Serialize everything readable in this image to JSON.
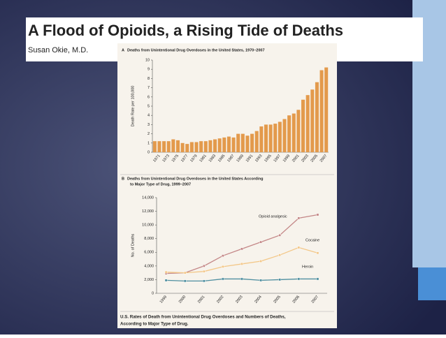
{
  "header": {
    "title": "A Flood of Opioids, a Rising Tide of Deaths",
    "author": "Susan Okie, M.D."
  },
  "caption": [
    "U.S. Rates of Death from Unintentional Drug Overdoses and Numbers of Deaths,",
    "According to Major Type of Drug."
  ],
  "chart_data": [
    {
      "type": "bar",
      "label": "A",
      "title": [
        "Deaths from Unintentional Drug Overdoses in the United States, 1970–2007"
      ],
      "y_label": "Death Rate per 100,000",
      "color": "#e39a4c",
      "categories": [
        null,
        "1971",
        null,
        "1973",
        null,
        "1975",
        null,
        "1977",
        null,
        "1979",
        null,
        "1981",
        null,
        "1983",
        null,
        "1985",
        null,
        "1987",
        null,
        "1989",
        null,
        "1991",
        null,
        "1993",
        null,
        "1995",
        null,
        "1997",
        null,
        "1999",
        null,
        "2001",
        null,
        "2003",
        null,
        "2005",
        null,
        "2007"
      ],
      "values": [
        1.2,
        1.2,
        1.2,
        1.2,
        1.4,
        1.3,
        1.0,
        0.9,
        1.1,
        1.1,
        1.2,
        1.2,
        1.3,
        1.4,
        1.5,
        1.6,
        1.7,
        1.6,
        2.0,
        2.0,
        1.8,
        2.0,
        2.3,
        2.8,
        3.0,
        3.0,
        3.1,
        3.3,
        3.6,
        4.0,
        4.2,
        4.6,
        5.7,
        6.2,
        6.8,
        7.6,
        8.9,
        9.2
      ],
      "ylim": [
        0,
        10
      ],
      "yticks": [
        0,
        1,
        2,
        3,
        4,
        5,
        6,
        7,
        8,
        9,
        10
      ]
    },
    {
      "type": "line",
      "label": "B",
      "title": [
        "Deaths from Unintentional Drug Overdoses in the United States According",
        "to Major Type of Drug, 1999–2007"
      ],
      "y_label": "No. of Deaths",
      "categories": [
        "1999",
        "2000",
        "2001",
        "2002",
        "2003",
        "2004",
        "2005",
        "2006",
        "2007"
      ],
      "series": [
        {
          "name": "Opioid analgesic",
          "color": "#c48787",
          "values": [
            2900,
            3000,
            4000,
            5500,
            6500,
            7500,
            8500,
            11000,
            11500
          ]
        },
        {
          "name": "Cocaine",
          "color": "#f3c788",
          "values": [
            3100,
            3000,
            3200,
            3900,
            4300,
            4700,
            5600,
            6700,
            5900
          ]
        },
        {
          "name": "Heroin",
          "color": "#4f8fa0",
          "values": [
            1900,
            1800,
            1800,
            2100,
            2100,
            1900,
            2000,
            2100,
            2100
          ]
        }
      ],
      "ylim": [
        0,
        14000
      ],
      "yticks": [
        0,
        {
          "value": 2000,
          "label": "2,000"
        },
        {
          "value": 4000,
          "label": "4,000"
        },
        {
          "value": 6000,
          "label": "6,000"
        },
        {
          "value": 8000,
          "label": "8,000"
        },
        {
          "value": 10000,
          "label": "10,000"
        },
        {
          "value": 12000,
          "label": "12,000"
        },
        {
          "value": 14000,
          "label": "14,000"
        }
      ]
    }
  ]
}
